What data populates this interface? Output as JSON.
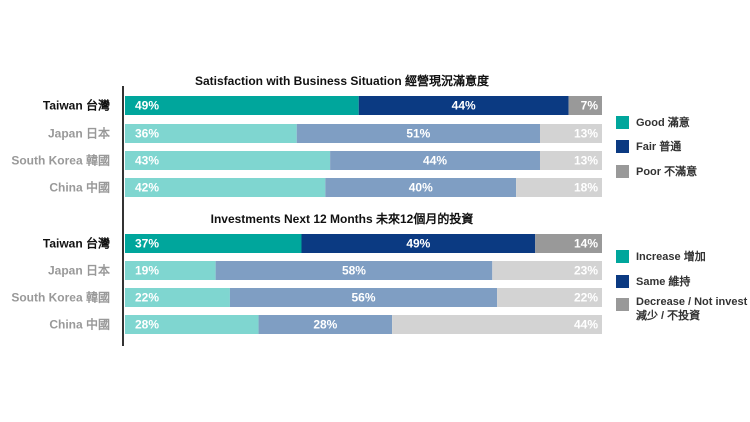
{
  "chart_data": [
    {
      "type": "bar",
      "orientation": "horizontal",
      "stacked": "100%",
      "title": "Satisfaction with Business Situation 經營現況滿意度",
      "categories": [
        "Taiwan 台灣",
        "Japan 日本",
        "South Korea 韓國",
        "China 中國"
      ],
      "highlight_category": "Taiwan 台灣",
      "series": [
        {
          "name": "Good 滿意",
          "values": [
            49,
            36,
            43,
            42
          ],
          "color": "#00a69c",
          "muted_color": "#7fd6d0"
        },
        {
          "name": "Fair 普通",
          "values": [
            44,
            51,
            44,
            40
          ],
          "color": "#0b3a82",
          "muted_color": "#7f9ec3"
        },
        {
          "name": "Poor 不滿意",
          "values": [
            7,
            13,
            13,
            18
          ],
          "color": "#999999",
          "muted_color": "#d3d3d3"
        }
      ],
      "value_labels": [
        [
          "49%",
          "44%",
          "7%"
        ],
        [
          "36%",
          "51%",
          "13%"
        ],
        [
          "43%",
          "44%",
          "13%"
        ],
        [
          "42%",
          "40%",
          "18%"
        ]
      ],
      "legend_position": "right"
    },
    {
      "type": "bar",
      "orientation": "horizontal",
      "stacked": "100%",
      "title": "Investments Next 12 Months 未來12個月的投資",
      "categories": [
        "Taiwan 台灣",
        "Japan 日本",
        "South Korea 韓國",
        "China 中國"
      ],
      "highlight_category": "Taiwan 台灣",
      "series": [
        {
          "name": "Increase 增加",
          "values": [
            37,
            19,
            22,
            28
          ],
          "color": "#00a69c",
          "muted_color": "#7fd6d0"
        },
        {
          "name": "Same 維持",
          "values": [
            49,
            58,
            56,
            28
          ],
          "color": "#0b3a82",
          "muted_color": "#7f9ec3"
        },
        {
          "name": "Decrease / Not invest 減少 / 不投資",
          "values": [
            14,
            23,
            22,
            44
          ],
          "color": "#999999",
          "muted_color": "#d3d3d3"
        }
      ],
      "value_labels": [
        [
          "37%",
          "49%",
          "14%"
        ],
        [
          "19%",
          "58%",
          "23%"
        ],
        [
          "22%",
          "56%",
          "22%"
        ],
        [
          "28%",
          "28%",
          "44%"
        ]
      ],
      "legend_position": "right"
    }
  ]
}
